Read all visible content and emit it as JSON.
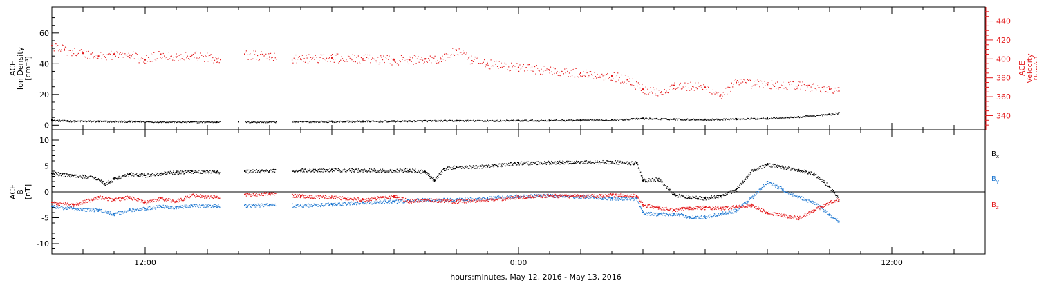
{
  "chart_data": [
    {
      "type": "scatter",
      "title": "",
      "xlabel": "hours:minutes, May 12, 2016 - May 13, 2016",
      "x_unit": "hours since 2016-05-12 00:00",
      "x_range": [
        9,
        39
      ],
      "x_tick_labels": [
        "12:00",
        "0:00",
        "12:00"
      ],
      "ylabel_left": [
        "ACE",
        "Ion Density",
        "[cm⁻³]"
      ],
      "ylim_left": [
        -3,
        77
      ],
      "yticks_left": [
        0,
        20,
        40,
        60
      ],
      "ylabel_right": [
        "ACE",
        "Velocity",
        "[km/s]"
      ],
      "ylim_right": [
        325,
        455
      ],
      "yticks_right": [
        340,
        360,
        380,
        400,
        420,
        440
      ],
      "colors": {
        "density": "#000000",
        "velocity": "#e41a1c"
      },
      "series": [
        {
          "key": "density",
          "axis": "left",
          "points": [
            [
              9.0,
              3.3
            ],
            [
              9.5,
              2.8
            ],
            [
              10.5,
              2.6
            ],
            [
              11.5,
              2.5
            ],
            [
              12.5,
              2.4
            ],
            [
              13.5,
              2.2
            ],
            [
              14.3,
              2.3
            ],
            [
              15.0,
              2.2
            ],
            [
              16.0,
              2.3
            ],
            [
              17.0,
              2.4
            ],
            [
              18.0,
              2.5
            ],
            [
              19.0,
              2.6
            ],
            [
              20.0,
              2.7
            ],
            [
              21.0,
              2.9
            ],
            [
              22.0,
              3.0
            ],
            [
              23.0,
              3.0
            ],
            [
              24.0,
              3.1
            ],
            [
              25.0,
              3.2
            ],
            [
              26.0,
              3.3
            ],
            [
              27.0,
              3.5
            ],
            [
              28.0,
              4.5
            ],
            [
              29.0,
              4.0
            ],
            [
              30.0,
              3.8
            ],
            [
              31.0,
              4.2
            ],
            [
              32.0,
              4.6
            ],
            [
              33.0,
              5.5
            ],
            [
              34.0,
              7.2
            ],
            [
              34.3,
              8.2
            ]
          ]
        },
        {
          "key": "velocity",
          "axis": "right",
          "points": [
            [
              9.0,
              414
            ],
            [
              9.4,
              410
            ],
            [
              10.0,
              406
            ],
            [
              10.5,
              403
            ],
            [
              11.0,
              405
            ],
            [
              11.5,
              404
            ],
            [
              12.0,
              399
            ],
            [
              12.5,
              405
            ],
            [
              13.0,
              402
            ],
            [
              13.5,
              404
            ],
            [
              14.3,
              400
            ],
            [
              15.2,
              405
            ],
            [
              16.0,
              402
            ],
            [
              17.0,
              400
            ],
            [
              18.0,
              401
            ],
            [
              19.0,
              400
            ],
            [
              20.0,
              399
            ],
            [
              20.5,
              399
            ],
            [
              21.0,
              400
            ],
            [
              21.5,
              400
            ],
            [
              22.0,
              409
            ],
            [
              22.5,
              398
            ],
            [
              23.0,
              395
            ],
            [
              24.0,
              391
            ],
            [
              25.0,
              388
            ],
            [
              26.0,
              385
            ],
            [
              27.0,
              382
            ],
            [
              27.5,
              378
            ],
            [
              28.0,
              368
            ],
            [
              28.6,
              365
            ],
            [
              29.0,
              372
            ],
            [
              30.0,
              370
            ],
            [
              30.5,
              362
            ],
            [
              31.0,
              375
            ],
            [
              32.0,
              373
            ],
            [
              33.0,
              372
            ],
            [
              34.0,
              368
            ],
            [
              34.3,
              366
            ]
          ]
        }
      ],
      "gaps_hours": [
        [
          14.4,
          15.2
        ],
        [
          16.2,
          16.7
        ]
      ]
    },
    {
      "type": "scatter",
      "title": "",
      "xlabel": "hours:minutes, May 12, 2016 - May 13, 2016",
      "x_range": [
        9,
        39
      ],
      "ylabel_left": [
        "ACE",
        "B",
        "[nT]"
      ],
      "ylim_left": [
        -12,
        12
      ],
      "yticks_left": [
        -10,
        -5,
        0,
        5,
        10
      ],
      "zero_line": true,
      "legend_position": "right",
      "colors": {
        "bx": "#000000",
        "by": "#1f78d1",
        "bz": "#e41a1c"
      },
      "series": [
        {
          "key": "bx",
          "label_main": "B",
          "label_sub": "x",
          "points": [
            [
              9.0,
              3.6
            ],
            [
              9.7,
              3.2
            ],
            [
              10.4,
              2.8
            ],
            [
              10.7,
              1.6
            ],
            [
              11.0,
              2.5
            ],
            [
              11.5,
              3.5
            ],
            [
              12.0,
              3.2
            ],
            [
              12.5,
              3.6
            ],
            [
              13.0,
              3.8
            ],
            [
              13.5,
              4.0
            ],
            [
              14.3,
              3.9
            ],
            [
              15.2,
              4.0
            ],
            [
              16.0,
              4.1
            ],
            [
              17.0,
              4.2
            ],
            [
              18.0,
              4.3
            ],
            [
              19.0,
              4.2
            ],
            [
              20.0,
              4.1
            ],
            [
              20.5,
              4.3
            ],
            [
              21.0,
              3.9
            ],
            [
              21.3,
              2.2
            ],
            [
              21.6,
              4.5
            ],
            [
              22.0,
              4.8
            ],
            [
              23.0,
              5.0
            ],
            [
              24.0,
              5.6
            ],
            [
              25.0,
              5.7
            ],
            [
              26.0,
              5.8
            ],
            [
              27.0,
              5.8
            ],
            [
              27.8,
              5.6
            ],
            [
              28.0,
              2.2
            ],
            [
              28.5,
              2.5
            ],
            [
              29.0,
              -0.5
            ],
            [
              29.5,
              -1.0
            ],
            [
              30.0,
              -1.2
            ],
            [
              30.5,
              -0.8
            ],
            [
              31.0,
              0.5
            ],
            [
              31.5,
              4.2
            ],
            [
              32.0,
              5.3
            ],
            [
              32.5,
              4.8
            ],
            [
              33.0,
              4.2
            ],
            [
              33.5,
              3.5
            ],
            [
              34.0,
              1.0
            ],
            [
              34.3,
              -1.5
            ]
          ]
        },
        {
          "key": "by",
          "label_main": "B",
          "label_sub": "y",
          "points": [
            [
              9.0,
              -2.8
            ],
            [
              9.7,
              -3.2
            ],
            [
              10.5,
              -3.5
            ],
            [
              11.0,
              -4.2
            ],
            [
              11.5,
              -3.5
            ],
            [
              12.0,
              -3.2
            ],
            [
              12.5,
              -2.8
            ],
            [
              13.0,
              -2.9
            ],
            [
              13.5,
              -2.6
            ],
            [
              14.3,
              -2.7
            ],
            [
              15.2,
              -2.6
            ],
            [
              16.0,
              -2.5
            ],
            [
              17.0,
              -2.6
            ],
            [
              18.0,
              -2.4
            ],
            [
              19.0,
              -2.0
            ],
            [
              20.0,
              -1.8
            ],
            [
              21.0,
              -1.5
            ],
            [
              22.0,
              -1.5
            ],
            [
              23.0,
              -1.2
            ],
            [
              24.0,
              -0.8
            ],
            [
              25.0,
              -0.7
            ],
            [
              26.0,
              -0.9
            ],
            [
              27.0,
              -1.2
            ],
            [
              27.8,
              -1.3
            ],
            [
              28.0,
              -4.0
            ],
            [
              28.5,
              -4.3
            ],
            [
              29.0,
              -4.2
            ],
            [
              29.5,
              -4.8
            ],
            [
              30.0,
              -4.9
            ],
            [
              30.5,
              -4.2
            ],
            [
              31.0,
              -3.5
            ],
            [
              31.5,
              -1.0
            ],
            [
              32.0,
              2.0
            ],
            [
              32.5,
              0.5
            ],
            [
              33.0,
              -1.0
            ],
            [
              33.5,
              -2.0
            ],
            [
              34.0,
              -4.5
            ],
            [
              34.3,
              -5.7
            ]
          ]
        },
        {
          "key": "bz",
          "label_main": "B",
          "label_sub": "z",
          "points": [
            [
              9.0,
              -2.0
            ],
            [
              9.7,
              -2.5
            ],
            [
              10.5,
              -1.0
            ],
            [
              11.0,
              -1.5
            ],
            [
              11.5,
              -1.0
            ],
            [
              12.0,
              -2.0
            ],
            [
              12.5,
              -1.2
            ],
            [
              13.0,
              -1.8
            ],
            [
              13.5,
              -0.6
            ],
            [
              14.3,
              -1.0
            ],
            [
              15.2,
              -0.5
            ],
            [
              16.0,
              -0.3
            ],
            [
              17.0,
              -0.8
            ],
            [
              18.0,
              -1.0
            ],
            [
              19.0,
              -1.5
            ],
            [
              20.0,
              -0.8
            ],
            [
              20.5,
              -1.8
            ],
            [
              21.0,
              -1.5
            ],
            [
              22.0,
              -1.8
            ],
            [
              23.0,
              -1.5
            ],
            [
              24.0,
              -1.0
            ],
            [
              25.0,
              -0.7
            ],
            [
              26.0,
              -0.8
            ],
            [
              27.0,
              -0.6
            ],
            [
              27.8,
              -0.7
            ],
            [
              28.0,
              -2.5
            ],
            [
              28.5,
              -3.0
            ],
            [
              29.0,
              -3.5
            ],
            [
              29.5,
              -3.0
            ],
            [
              30.0,
              -3.0
            ],
            [
              30.5,
              -3.2
            ],
            [
              31.0,
              -2.8
            ],
            [
              31.5,
              -2.5
            ],
            [
              32.0,
              -4.0
            ],
            [
              32.5,
              -4.5
            ],
            [
              33.0,
              -5.0
            ],
            [
              33.5,
              -3.5
            ],
            [
              34.0,
              -2.0
            ],
            [
              34.3,
              -1.5
            ]
          ]
        }
      ],
      "gaps_hours": [
        [
          14.4,
          15.2
        ],
        [
          16.2,
          16.7
        ]
      ]
    }
  ]
}
